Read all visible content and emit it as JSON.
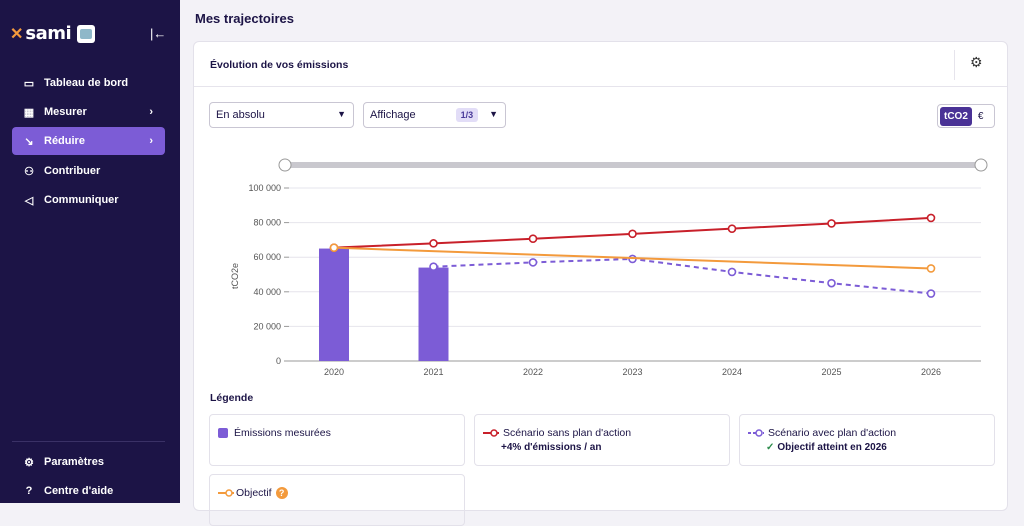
{
  "sidebar": {
    "logo_text": "sami",
    "items": [
      {
        "label": "Tableau de bord",
        "icon": "dashboard-icon"
      },
      {
        "label": "Mesurer",
        "icon": "calculator-icon"
      },
      {
        "label": "Réduire",
        "icon": "chart-down-icon"
      },
      {
        "label": "Contribuer",
        "icon": "people-icon"
      },
      {
        "label": "Communiquer",
        "icon": "megaphone-icon"
      }
    ],
    "bottom": [
      {
        "label": "Paramètres",
        "icon": "gear-icon"
      },
      {
        "label": "Centre d'aide",
        "icon": "help-icon"
      }
    ]
  },
  "page": {
    "title": "Mes trajectoires"
  },
  "card": {
    "title": "Évolution de vos émissions",
    "select_mode": "En absolu",
    "select_display": "Affichage",
    "display_count": "1/3",
    "unit_active": "tCO2",
    "unit_inactive": "€"
  },
  "chart_data": {
    "type": "bar+line",
    "ylabel": "tCO2e",
    "ylim": [
      0,
      100000
    ],
    "yticks": [
      "0",
      "20 000",
      "40 000",
      "60 000",
      "80 000",
      "100 000"
    ],
    "categories": [
      "2020",
      "2021",
      "2022",
      "2023",
      "2024",
      "2025",
      "2026"
    ],
    "bars": {
      "name": "Émissions mesurées",
      "values": [
        65000,
        54000,
        null,
        null,
        null,
        null,
        null
      ],
      "color": "#7c5cd6"
    },
    "series": [
      {
        "name": "Scénario sans plan d'action",
        "values": [
          65500,
          68000,
          70700,
          73500,
          76500,
          79500,
          82700
        ],
        "color": "#c8202a",
        "dashed": false
      },
      {
        "name": "Scénario avec plan d'action",
        "values": [
          null,
          54500,
          57000,
          59000,
          51500,
          45000,
          39000
        ],
        "color": "#7c5cd6",
        "dashed": true
      },
      {
        "name": "Objectif",
        "values": [
          65500,
          null,
          null,
          null,
          null,
          null,
          53500
        ],
        "color": "#f39a3c",
        "dashed": false
      }
    ]
  },
  "legend": {
    "title": "Légende",
    "measured": "Émissions mesurées",
    "no_plan": "Scénario sans plan d'action",
    "no_plan_sub": "+4% d'émissions / an",
    "with_plan": "Scénario avec plan d'action",
    "with_plan_sub": "Objectif atteint en 2026",
    "objective": "Objectif"
  }
}
